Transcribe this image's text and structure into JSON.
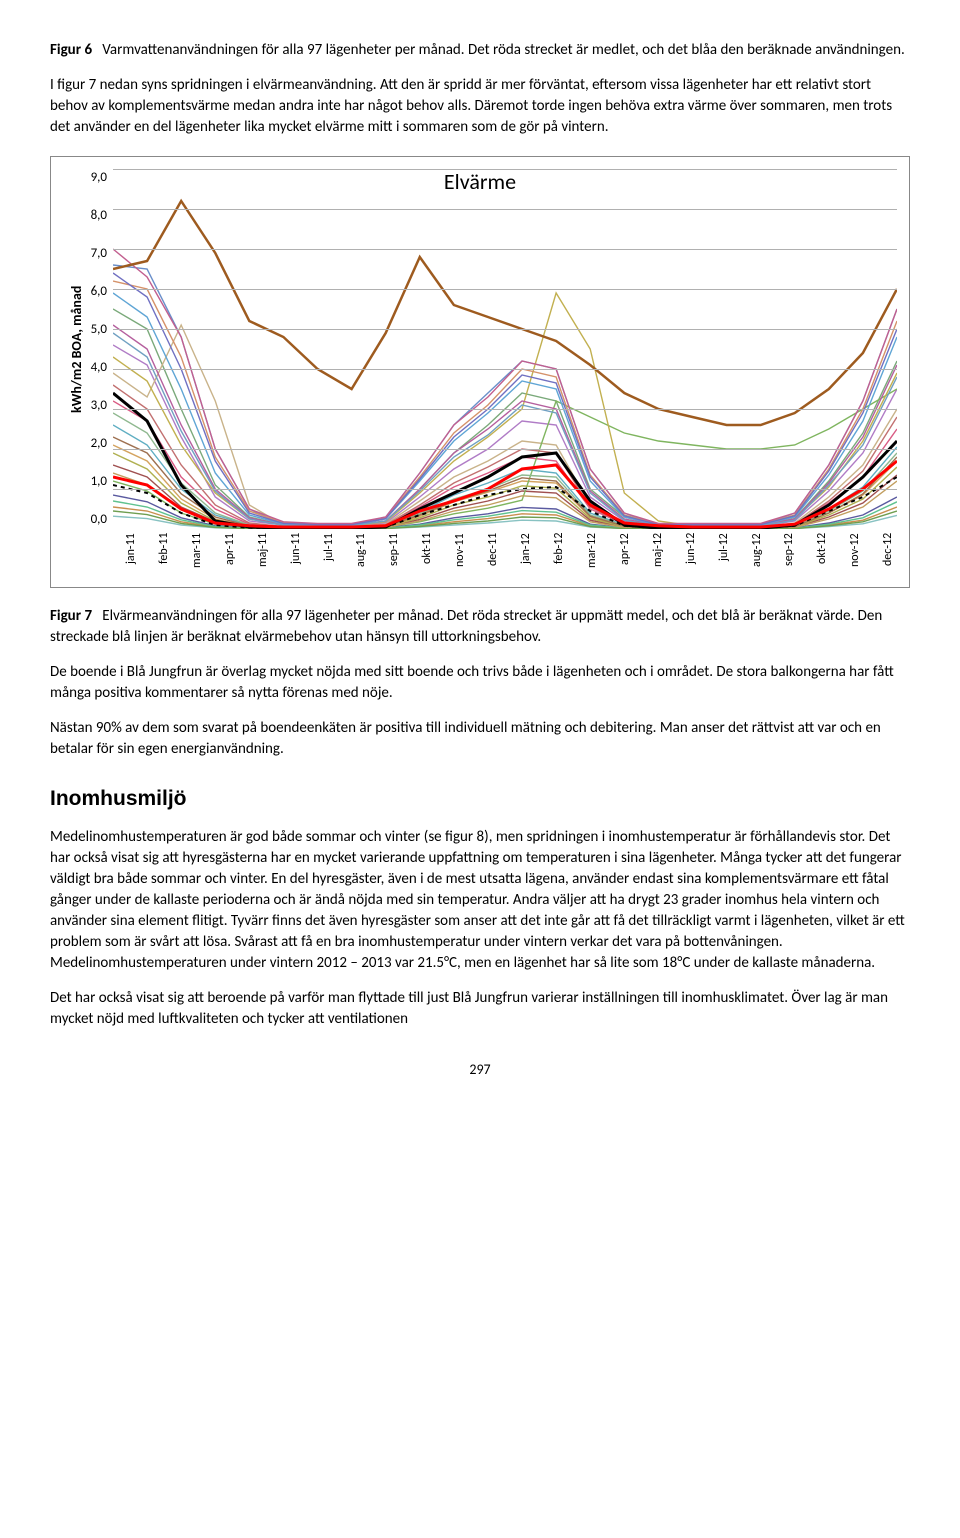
{
  "figure6_caption": {
    "label": "Figur 6",
    "text": "Varmvattenanvändningen för alla 97 lägenheter per månad. Det röda strecket är medlet, och det blåa den beräknade användningen."
  },
  "para1": "I figur 7 nedan syns spridningen i elvärmeanvändning. Att den är spridd är mer förväntat, eftersom vissa lägenheter har ett relativt stort behov av komplementsvärme medan andra inte har något behov alls. Däremot torde ingen behöva extra värme över sommaren, men trots det använder en del lägenheter lika mycket elvärme mitt i sommaren som de gör på vintern.",
  "figure7_caption": {
    "label": "Figur 7",
    "text": "Elvärmeanvändningen för alla 97 lägenheter per månad. Det röda strecket är uppmätt medel, och det blå är beräknat värde. Den streckade blå linjen är beräknat elvärmebehov utan hänsyn till uttorkningsbehov."
  },
  "para2": "De boende i Blå Jungfrun är överlag mycket nöjda med sitt boende och trivs både i lägenheten och i området. De stora balkongerna har fått många positiva kommentarer så nytta förenas med nöje.",
  "para3": "Nästan 90% av dem som svarat på boendeenkäten är positiva till individuell mätning och debitering. Man anser det rättvist att var och en betalar för sin egen energianvändning.",
  "heading": "Inomhusmiljö",
  "para4": "Medelinomhustemperaturen är god både sommar och vinter (se figur 8), men spridningen i inomhustemperatur är förhållandevis stor. Det har också visat sig att hyresgästerna har en mycket varierande uppfattning om temperaturen i sina lägenheter. Många tycker att det fungerar väldigt bra både sommar och vinter. En del hyresgäster, även i de mest utsatta lägena, använder endast sina komplementsvärmare ett fåtal gånger under de kallaste perioderna och är ändå nöjda med sin temperatur. Andra väljer att ha drygt 23 grader inomhus hela vintern och använder sina element flitigt. Tyvärr finns det även hyresgäster som anser att det inte går att få det tillräckligt varmt i lägenheten, vilket är ett problem som är svårt att lösa. Svårast att få en bra inomhustemperatur under vintern verkar det vara på bottenvåningen. Medelinomhustemperaturen under vintern 2012 – 2013 var 21.5°C, men en lägenhet har så lite som 18°C under de kallaste månaderna.",
  "para5": "Det har också visat sig att beroende på varför man flyttade till just Blå Jungfrun varierar inställningen till inomhusklimatet. Över lag är man mycket nöjd med luftkvaliteten och tycker att ventilationen",
  "page_number": "297",
  "chart": {
    "type": "line",
    "title": "Elvärme",
    "ylabel": "kWh/m2 BOA, månad",
    "ylim": [
      0.0,
      9.0
    ],
    "ytick_step": 1.0,
    "yticks": [
      "9,0",
      "8,0",
      "7,0",
      "6,0",
      "5,0",
      "4,0",
      "3,0",
      "2,0",
      "1,0",
      "0,0"
    ],
    "categories": [
      "jan-11",
      "feb-11",
      "mar-11",
      "apr-11",
      "maj-11",
      "jun-11",
      "jul-11",
      "aug-11",
      "sep-11",
      "okt-11",
      "nov-11",
      "dec-11",
      "jan-12",
      "feb-12",
      "mar-12",
      "apr-12",
      "maj-12",
      "jun-12",
      "jul-12",
      "aug-12",
      "sep-12",
      "okt-12",
      "nov-12",
      "dec-12"
    ],
    "background_color": "#ffffff",
    "grid_color": "#b0b0b0",
    "title_fontsize": 22,
    "label_fontsize": 14,
    "tick_fontsize": 12,
    "highlight_series": {
      "mean_red": {
        "color": "#ff0000",
        "width": 3,
        "dash": "",
        "values": [
          1.3,
          1.1,
          0.5,
          0.15,
          0.08,
          0.05,
          0.05,
          0.05,
          0.08,
          0.45,
          0.7,
          1.0,
          1.5,
          1.6,
          0.6,
          0.15,
          0.08,
          0.05,
          0.05,
          0.05,
          0.12,
          0.5,
          1.0,
          1.7
        ]
      },
      "calc_black": {
        "color": "#000000",
        "width": 3,
        "dash": "",
        "values": [
          3.4,
          2.7,
          1.1,
          0.2,
          0.05,
          0.02,
          0.02,
          0.02,
          0.05,
          0.5,
          0.9,
          1.3,
          1.8,
          1.9,
          0.7,
          0.1,
          0.02,
          0.02,
          0.02,
          0.02,
          0.1,
          0.6,
          1.3,
          2.2
        ]
      },
      "calc_dotted": {
        "color": "#000000",
        "width": 2,
        "dash": "4,4",
        "values": [
          1.1,
          0.9,
          0.4,
          0.1,
          0.03,
          0.02,
          0.02,
          0.02,
          0.05,
          0.35,
          0.6,
          0.85,
          1.0,
          1.05,
          0.45,
          0.08,
          0.02,
          0.02,
          0.02,
          0.02,
          0.08,
          0.45,
          0.8,
          1.3
        ]
      },
      "brown_high": {
        "color": "#9e5b1f",
        "width": 2.5,
        "dash": "",
        "values": [
          6.5,
          6.7,
          8.2,
          6.9,
          5.2,
          4.8,
          4.0,
          3.5,
          4.9,
          6.8,
          5.6,
          5.3,
          5.0,
          4.7,
          4.1,
          3.4,
          3.0,
          2.8,
          2.6,
          2.6,
          2.9,
          3.5,
          4.4,
          6.0
        ]
      }
    },
    "background_series": [
      {
        "color": "#6a8fca",
        "values": [
          6.6,
          6.5,
          4.8,
          2.0,
          0.5,
          0.1,
          0.1,
          0.1,
          0.3,
          1.4,
          2.6,
          3.4,
          4.2,
          4.0,
          1.5,
          0.4,
          0.1,
          0.1,
          0.1,
          0.1,
          0.4,
          1.6,
          3.2,
          5.5
        ]
      },
      {
        "color": "#7aa97a",
        "values": [
          5.5,
          5.0,
          3.0,
          1.1,
          0.3,
          0.1,
          0.1,
          0.1,
          0.2,
          1.0,
          1.9,
          2.6,
          3.4,
          3.2,
          1.0,
          0.3,
          0.1,
          0.1,
          0.1,
          0.1,
          0.26,
          1.2,
          2.4,
          4.2
        ]
      },
      {
        "color": "#b07cc6",
        "values": [
          4.6,
          4.1,
          2.3,
          0.8,
          0.2,
          0.1,
          0.07,
          0.07,
          0.15,
          0.8,
          1.5,
          2.0,
          2.7,
          2.6,
          0.8,
          0.2,
          0.07,
          0.07,
          0.07,
          0.07,
          0.2,
          0.95,
          1.9,
          3.5
        ]
      },
      {
        "color": "#c9b38a",
        "values": [
          3.9,
          3.3,
          5.1,
          3.2,
          0.6,
          0.1,
          0.07,
          0.06,
          0.12,
          0.7,
          1.3,
          1.7,
          2.2,
          2.1,
          0.6,
          0.15,
          0.05,
          0.05,
          0.05,
          0.05,
          0.15,
          0.8,
          1.6,
          3.0
        ]
      },
      {
        "color": "#d95b84",
        "values": [
          3.2,
          2.7,
          1.3,
          0.5,
          0.12,
          0.05,
          0.05,
          0.05,
          0.1,
          0.55,
          1.05,
          1.4,
          1.8,
          1.7,
          0.5,
          0.12,
          0.05,
          0.05,
          0.05,
          0.05,
          0.12,
          0.65,
          1.3,
          2.5
        ]
      },
      {
        "color": "#5faec2",
        "values": [
          2.6,
          2.1,
          1.0,
          0.35,
          0.1,
          0.04,
          0.04,
          0.04,
          0.08,
          0.42,
          0.85,
          1.15,
          1.5,
          1.4,
          0.4,
          0.1,
          0.04,
          0.04,
          0.04,
          0.04,
          0.08,
          0.5,
          1.05,
          2.05
        ]
      },
      {
        "color": "#d4a35f",
        "values": [
          2.1,
          1.7,
          0.75,
          0.25,
          0.07,
          0.03,
          0.03,
          0.03,
          0.06,
          0.32,
          0.68,
          0.92,
          1.2,
          1.15,
          0.3,
          0.07,
          0.03,
          0.03,
          0.03,
          0.03,
          0.06,
          0.4,
          0.85,
          1.7
        ]
      },
      {
        "color": "#a05050",
        "values": [
          1.6,
          1.3,
          0.55,
          0.18,
          0.05,
          0.02,
          0.02,
          0.02,
          0.05,
          0.24,
          0.52,
          0.7,
          0.95,
          0.9,
          0.22,
          0.05,
          0.02,
          0.02,
          0.02,
          0.02,
          0.05,
          0.3,
          0.65,
          1.35
        ]
      },
      {
        "color": "#7fb55f",
        "values": [
          1.2,
          0.95,
          0.4,
          0.12,
          0.04,
          0.02,
          0.02,
          0.02,
          0.04,
          0.18,
          0.38,
          0.52,
          0.72,
          3.2,
          2.8,
          2.4,
          2.2,
          2.1,
          2.0,
          2.0,
          2.1,
          2.5,
          3.0,
          3.5
        ]
      },
      {
        "color": "#5a5aa0",
        "values": [
          0.85,
          0.68,
          0.28,
          0.08,
          0.03,
          0.02,
          0.02,
          0.02,
          0.03,
          0.12,
          0.28,
          0.38,
          0.54,
          0.5,
          0.12,
          0.03,
          0.02,
          0.02,
          0.02,
          0.02,
          0.03,
          0.15,
          0.35,
          0.8
        ]
      },
      {
        "color": "#c98f4f",
        "values": [
          0.55,
          0.45,
          0.18,
          0.05,
          0.02,
          0.01,
          0.01,
          0.01,
          0.02,
          0.08,
          0.18,
          0.26,
          0.38,
          0.35,
          0.08,
          0.02,
          0.01,
          0.01,
          0.01,
          0.01,
          0.02,
          0.1,
          0.22,
          0.55
        ]
      },
      {
        "color": "#88c2c2",
        "values": [
          0.32,
          0.26,
          0.1,
          0.03,
          0.01,
          0.01,
          0.01,
          0.01,
          0.01,
          0.05,
          0.1,
          0.15,
          0.22,
          0.2,
          0.05,
          0.01,
          0.01,
          0.01,
          0.01,
          0.01,
          0.01,
          0.06,
          0.13,
          0.34
        ]
      },
      {
        "color": "#c2b050",
        "values": [
          4.3,
          3.7,
          2.1,
          0.9,
          0.25,
          0.1,
          0.08,
          0.08,
          0.18,
          0.9,
          1.7,
          2.3,
          3.0,
          5.9,
          4.5,
          0.9,
          0.2,
          0.08,
          0.08,
          0.08,
          0.25,
          1.05,
          2.2,
          3.9
        ]
      },
      {
        "color": "#b55f9e",
        "values": [
          5.1,
          4.5,
          2.6,
          1.0,
          0.28,
          0.1,
          0.09,
          0.09,
          0.2,
          1.0,
          1.9,
          2.5,
          3.2,
          3.0,
          0.95,
          0.25,
          0.09,
          0.09,
          0.09,
          0.09,
          0.25,
          1.15,
          2.3,
          4.1
        ]
      },
      {
        "color": "#5fa5d5",
        "values": [
          5.9,
          5.3,
          3.5,
          1.4,
          0.35,
          0.12,
          0.1,
          0.1,
          0.25,
          1.2,
          2.2,
          2.9,
          3.7,
          3.5,
          1.2,
          0.3,
          0.1,
          0.1,
          0.1,
          0.1,
          0.3,
          1.35,
          2.7,
          4.8
        ]
      },
      {
        "color": "#d5926a",
        "values": [
          6.2,
          6.0,
          4.3,
          1.8,
          0.45,
          0.15,
          0.12,
          0.12,
          0.28,
          1.3,
          2.4,
          3.1,
          4.0,
          3.8,
          1.35,
          0.35,
          0.12,
          0.12,
          0.12,
          0.12,
          0.35,
          1.5,
          3.0,
          5.2
        ]
      },
      {
        "color": "#8fb88f",
        "values": [
          2.9,
          2.4,
          1.15,
          0.4,
          0.1,
          0.04,
          0.04,
          0.04,
          0.07,
          0.38,
          0.75,
          1.0,
          1.35,
          1.3,
          0.35,
          0.09,
          0.04,
          0.04,
          0.04,
          0.04,
          0.07,
          0.45,
          0.95,
          1.9
        ]
      },
      {
        "color": "#c27070",
        "values": [
          3.6,
          3.0,
          1.6,
          0.6,
          0.15,
          0.06,
          0.06,
          0.06,
          0.1,
          0.6,
          1.15,
          1.55,
          2.0,
          1.9,
          0.55,
          0.12,
          0.06,
          0.06,
          0.06,
          0.06,
          0.12,
          0.7,
          1.45,
          2.8
        ]
      },
      {
        "color": "#70a0c2",
        "values": [
          4.9,
          4.3,
          2.45,
          0.95,
          0.25,
          0.09,
          0.08,
          0.08,
          0.2,
          0.95,
          1.8,
          2.35,
          3.1,
          2.9,
          0.9,
          0.22,
          0.08,
          0.08,
          0.08,
          0.08,
          0.22,
          1.1,
          2.1,
          3.8
        ]
      },
      {
        "color": "#b0b050",
        "values": [
          1.9,
          1.5,
          0.65,
          0.2,
          0.06,
          0.03,
          0.03,
          0.03,
          0.05,
          0.28,
          0.6,
          0.8,
          1.08,
          1.02,
          0.26,
          0.06,
          0.03,
          0.03,
          0.03,
          0.03,
          0.05,
          0.35,
          0.75,
          1.55
        ]
      },
      {
        "color": "#7070c2",
        "values": [
          6.4,
          5.8,
          4.0,
          1.7,
          0.4,
          0.14,
          0.11,
          0.11,
          0.26,
          1.25,
          2.3,
          3.0,
          3.85,
          3.65,
          1.3,
          0.33,
          0.11,
          0.11,
          0.11,
          0.11,
          0.33,
          1.45,
          2.9,
          5.0
        ]
      },
      {
        "color": "#c25f8f",
        "values": [
          7.0,
          6.3,
          4.8,
          2.0,
          0.5,
          0.18,
          0.14,
          0.14,
          0.3,
          1.4,
          2.6,
          3.3,
          4.2,
          4.0,
          1.5,
          0.4,
          0.14,
          0.14,
          0.14,
          0.14,
          0.4,
          1.6,
          3.2,
          5.5
        ]
      },
      {
        "color": "#5fc28f",
        "values": [
          0.7,
          0.55,
          0.23,
          0.06,
          0.02,
          0.01,
          0.01,
          0.01,
          0.02,
          0.1,
          0.23,
          0.32,
          0.46,
          0.42,
          0.1,
          0.02,
          0.01,
          0.01,
          0.01,
          0.01,
          0.02,
          0.12,
          0.28,
          0.68
        ]
      },
      {
        "color": "#c29e5f",
        "values": [
          1.4,
          1.1,
          0.48,
          0.15,
          0.04,
          0.02,
          0.02,
          0.02,
          0.04,
          0.2,
          0.45,
          0.6,
          0.83,
          0.78,
          0.18,
          0.04,
          0.02,
          0.02,
          0.02,
          0.02,
          0.04,
          0.25,
          0.55,
          1.2
        ]
      },
      {
        "color": "#9e7050",
        "values": [
          2.3,
          1.9,
          0.88,
          0.3,
          0.08,
          0.03,
          0.03,
          0.03,
          0.06,
          0.35,
          0.7,
          0.95,
          1.28,
          1.2,
          0.32,
          0.07,
          0.03,
          0.03,
          0.03,
          0.03,
          0.06,
          0.4,
          0.88,
          1.8
        ]
      },
      {
        "color": "#6f9e50",
        "values": [
          0.45,
          0.36,
          0.14,
          0.04,
          0.01,
          0.01,
          0.01,
          0.01,
          0.01,
          0.06,
          0.14,
          0.2,
          0.3,
          0.28,
          0.06,
          0.01,
          0.01,
          0.01,
          0.01,
          0.01,
          0.01,
          0.08,
          0.18,
          0.45
        ]
      }
    ]
  }
}
